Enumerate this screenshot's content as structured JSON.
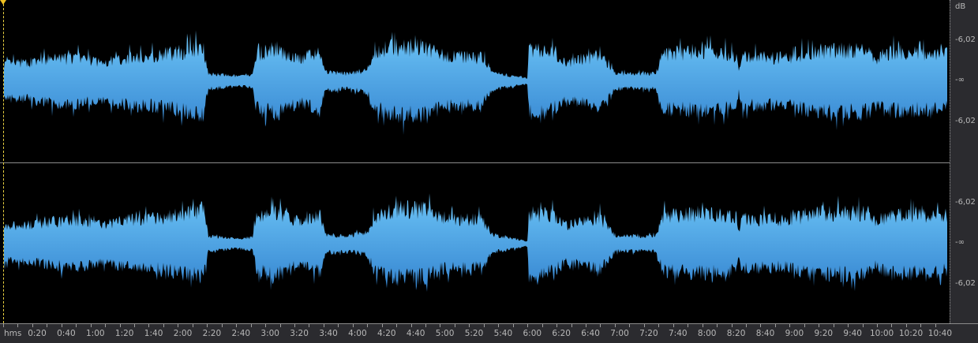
{
  "scale": {
    "unit": "dB",
    "channels": [
      {
        "labels": [
          "-6,02",
          "-∞",
          "-6,02"
        ]
      },
      {
        "labels": [
          "-6,02",
          "-∞",
          "-6,02"
        ]
      }
    ]
  },
  "ruler": {
    "format_label": "hms",
    "ticks": [
      "0:20",
      "0:40",
      "1:00",
      "1:20",
      "1:40",
      "2:00",
      "2:20",
      "2:40",
      "3:00",
      "3:20",
      "3:40",
      "4:00",
      "4:20",
      "4:40",
      "5:00",
      "5:20",
      "5:40",
      "6:00",
      "6:20",
      "6:40",
      "7:00",
      "7:20",
      "7:40",
      "8:00",
      "8:20",
      "8:40",
      "9:00",
      "9:20",
      "9:40",
      "10:00",
      "10:20",
      "10:40"
    ]
  },
  "colors": {
    "waveform_top": "#6cc4f6",
    "waveform_bottom": "#3484d0",
    "background": "#000000",
    "playhead": "#f0c020"
  }
}
